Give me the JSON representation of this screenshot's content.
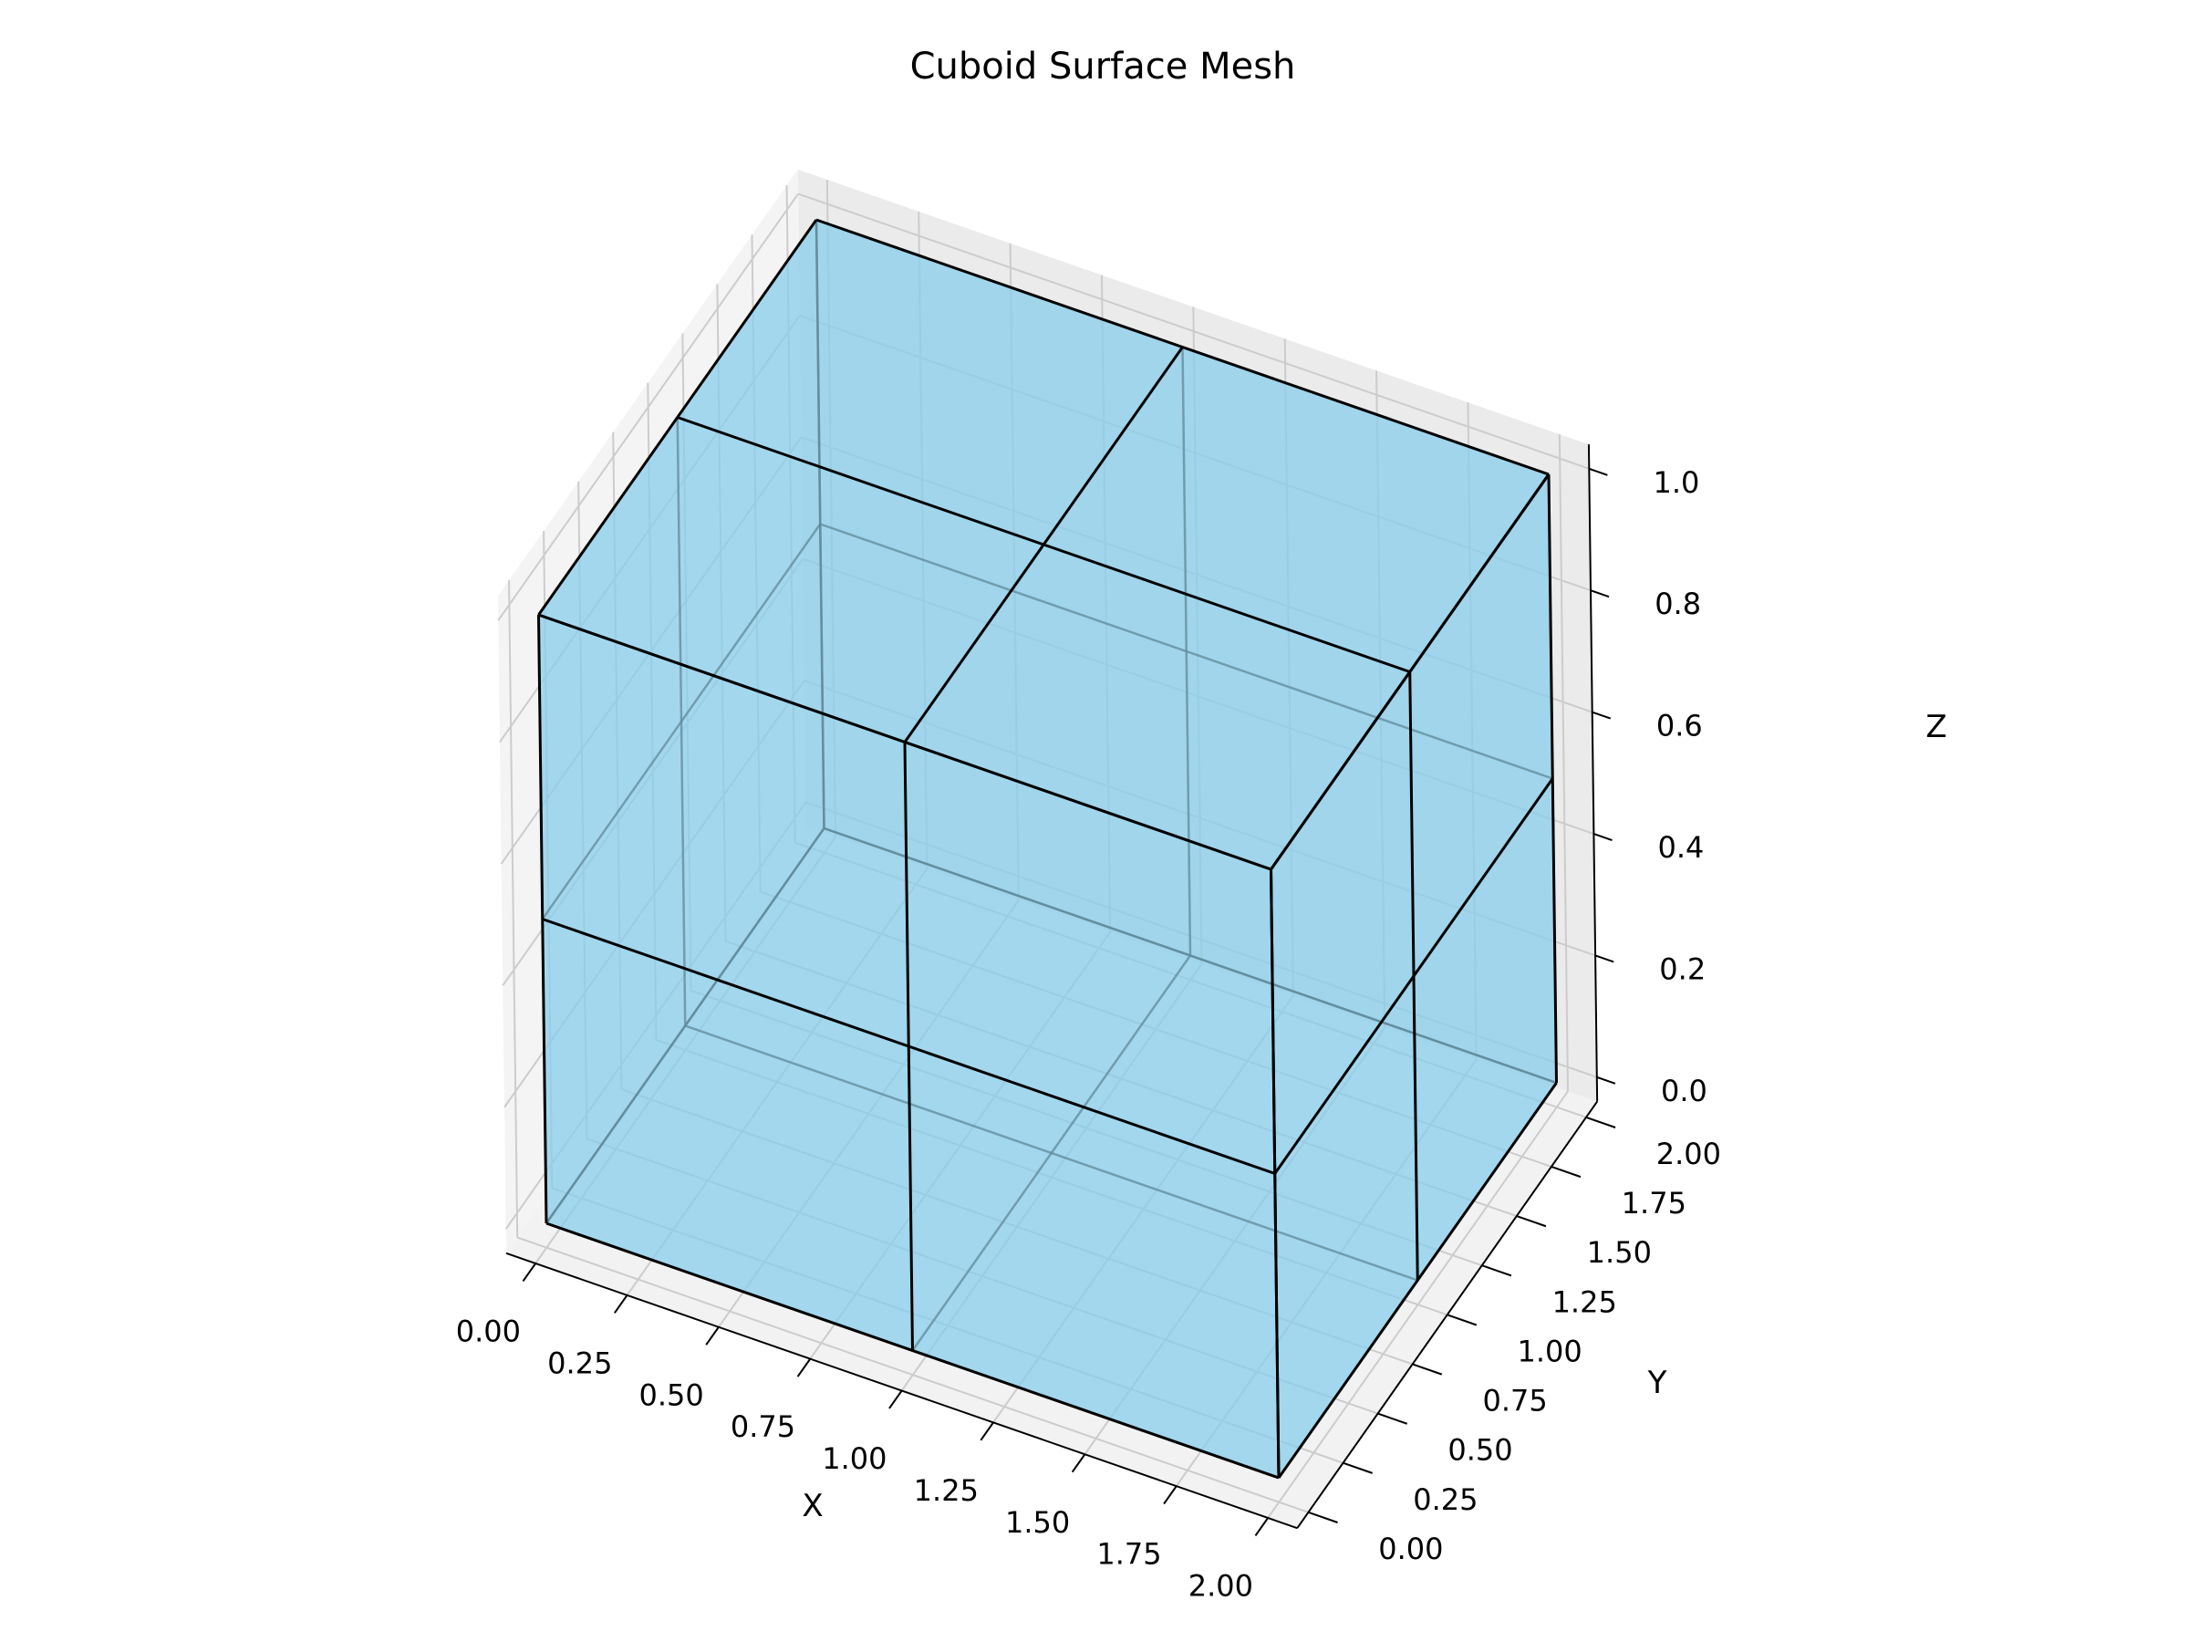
{
  "chart_data": {
    "type": "mesh3d",
    "title": "Cuboid Surface Mesh",
    "xlabel": "X",
    "ylabel": "Y",
    "zlabel": "Z",
    "xlim": [
      0,
      2
    ],
    "ylim": [
      0,
      2
    ],
    "zlim": [
      0,
      1
    ],
    "xticks": [
      "0.00",
      "0.25",
      "0.50",
      "0.75",
      "1.00",
      "1.25",
      "1.50",
      "1.75",
      "2.00"
    ],
    "yticks": [
      "0.00",
      "0.25",
      "0.50",
      "0.75",
      "1.00",
      "1.25",
      "1.50",
      "1.75",
      "2.00"
    ],
    "zticks": [
      "0.0",
      "0.2",
      "0.4",
      "0.6",
      "0.8",
      "1.0"
    ],
    "grid": true,
    "cuboid": {
      "x": [
        0,
        2
      ],
      "y": [
        0,
        2
      ],
      "z": [
        0,
        1
      ],
      "subdivisions": {
        "x": 2,
        "y": 2,
        "z": 2
      },
      "face_color": "#87ceeb",
      "edge_color": "#000000",
      "alpha": 0.8
    },
    "pane_color": "#f2f2f2",
    "grid_color": "#cccccc"
  }
}
